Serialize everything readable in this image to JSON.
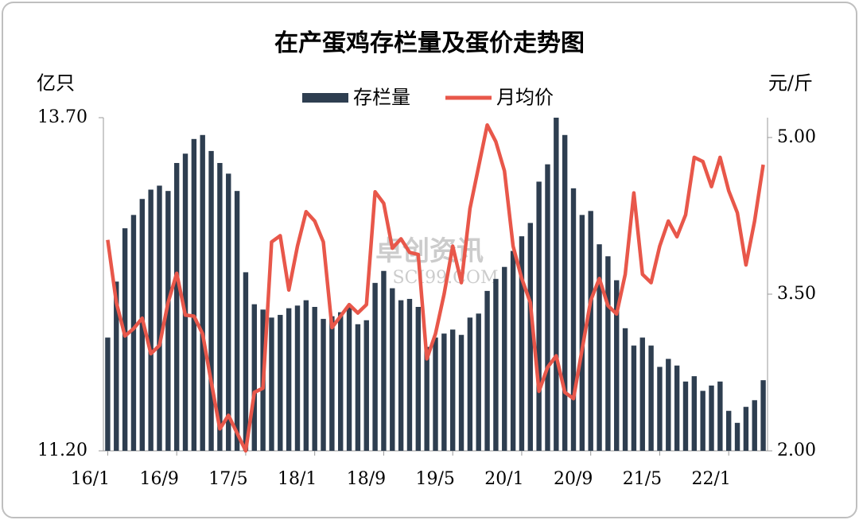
{
  "chart_data": {
    "type": "bar_line",
    "title": "在产蛋鸡存栏量及蛋价走势图",
    "y_label": "亿只",
    "y2_label": "元/斤",
    "watermark": [
      "卓创资讯",
      "SCI99.COM"
    ],
    "categories": [
      "16/1",
      null,
      null,
      null,
      null,
      null,
      null,
      null,
      "16/9",
      null,
      null,
      null,
      null,
      null,
      null,
      null,
      "17/5",
      null,
      null,
      null,
      null,
      null,
      null,
      null,
      "18/1",
      null,
      null,
      null,
      null,
      null,
      null,
      null,
      "18/9",
      null,
      null,
      null,
      null,
      null,
      null,
      null,
      "19/5",
      null,
      null,
      null,
      null,
      null,
      null,
      null,
      "20/1",
      null,
      null,
      null,
      null,
      null,
      null,
      null,
      "20/9",
      null,
      null,
      null,
      null,
      null,
      null,
      null,
      "21/5",
      null,
      null,
      null,
      null,
      null,
      null,
      null,
      "22/1",
      null,
      null,
      null,
      null
    ],
    "series": [
      {
        "name": "存栏量",
        "kind": "bar",
        "color": "#2e3e50",
        "values": [
          12.05,
          12.47,
          12.87,
          12.97,
          13.09,
          13.16,
          13.19,
          13.15,
          13.36,
          13.43,
          13.54,
          13.57,
          13.45,
          13.36,
          13.28,
          13.15,
          12.54,
          12.3,
          12.26,
          12.2,
          12.22,
          12.27,
          12.29,
          12.33,
          12.28,
          12.19,
          12.21,
          12.24,
          12.28,
          12.15,
          12.18,
          12.46,
          12.55,
          12.42,
          12.33,
          12.34,
          12.28,
          11.98,
          12.05,
          12.08,
          12.11,
          12.07,
          12.2,
          12.23,
          12.4,
          12.49,
          12.58,
          12.7,
          12.81,
          12.91,
          13.22,
          13.35,
          13.7,
          13.57,
          13.17,
          12.97,
          13.0,
          12.75,
          12.66,
          12.48,
          12.12,
          11.99,
          12.05,
          11.99,
          11.83,
          11.89,
          11.84,
          11.72,
          11.76,
          11.65,
          11.69,
          11.72,
          11.5,
          11.41,
          11.53,
          11.58,
          11.73
        ]
      },
      {
        "name": "月均价",
        "kind": "line",
        "axis": "y2",
        "color": "#e8574a",
        "values": [
          4.02,
          3.42,
          3.1,
          3.17,
          3.27,
          2.93,
          3.01,
          3.42,
          3.7,
          3.3,
          3.29,
          3.12,
          2.66,
          2.21,
          2.34,
          2.17,
          2.0,
          2.56,
          2.6,
          4.0,
          4.06,
          3.54,
          3.96,
          4.29,
          4.2,
          4.0,
          3.18,
          3.29,
          3.4,
          3.32,
          3.4,
          4.48,
          4.37,
          3.94,
          4.03,
          3.9,
          3.88,
          2.88,
          3.12,
          3.5,
          3.96,
          3.61,
          4.32,
          4.72,
          5.12,
          4.96,
          4.68,
          3.96,
          3.65,
          3.42,
          2.57,
          2.8,
          2.91,
          2.56,
          2.5,
          2.97,
          3.44,
          3.65,
          3.39,
          3.31,
          3.69,
          4.47,
          3.69,
          3.61,
          3.96,
          4.2,
          4.05,
          4.26,
          4.81,
          4.77,
          4.53,
          4.81,
          4.49,
          4.28,
          3.78,
          4.2,
          4.74
        ]
      }
    ],
    "ylim": [
      11.2,
      13.7
    ],
    "yticks": [
      {
        "value": 11.2,
        "label": "11.20"
      },
      {
        "value": 13.7,
        "label": "13.70"
      }
    ],
    "y2lim": [
      2,
      5.19
    ],
    "y2ticks": [
      {
        "value": 2,
        "label": "2.00"
      },
      {
        "value": 3.5,
        "label": "3.50"
      },
      {
        "value": 5,
        "label": "5.00"
      }
    ],
    "legend": "top"
  }
}
